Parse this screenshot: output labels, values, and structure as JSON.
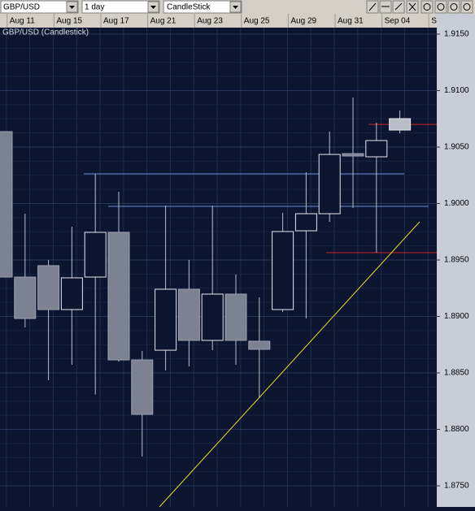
{
  "toolbar": {
    "symbol": "GBP/USD",
    "interval": "1 day",
    "style": "CandleStick"
  },
  "chart_data": {
    "type": "candlestick",
    "title": "GBP/USD (Candlestick)",
    "categories": [
      null,
      "Aug 11",
      null,
      "Aug 15",
      null,
      "Aug 17",
      null,
      "Aug 21",
      null,
      "Aug 23",
      null,
      "Aug 25",
      null,
      "Aug 29",
      null,
      "Aug 31",
      null,
      "Sep 04",
      null,
      "S"
    ],
    "open": [
      1.90637,
      1.89349,
      1.8945,
      1.89061,
      1.89349,
      1.89745,
      1.88615,
      1.88701,
      1.89241,
      1.88788,
      1.89198,
      1.88781,
      1.89061,
      1.89759,
      1.8991,
      1.90442,
      1.90414,
      1.90651,
      null,
      null
    ],
    "high": [
      1.90637,
      1.8991,
      1.895,
      1.89795,
      1.90263,
      1.90104,
      1.88694,
      1.89982,
      1.895,
      1.89982,
      1.89371,
      1.89169,
      1.89917,
      1.90277,
      1.90637,
      1.90939,
      1.90716,
      1.90824,
      null,
      null
    ],
    "low": [
      1.89349,
      1.88903,
      1.88435,
      1.88572,
      1.88309,
      1.886,
      1.87759,
      1.88522,
      1.88558,
      1.88701,
      1.88572,
      1.88277,
      1.89039,
      1.88982,
      1.89838,
      1.8996,
      1.89565,
      1.90622,
      null,
      null
    ],
    "close": [
      1.89349,
      1.88982,
      1.89061,
      1.89342,
      1.89745,
      1.88615,
      1.88133,
      1.89241,
      1.88788,
      1.89198,
      1.88788,
      1.88709,
      1.89752,
      1.8991,
      1.90435,
      1.90421,
      1.90558,
      1.90752,
      null,
      null
    ],
    "up_color": "#0b1530",
    "down_color": "#7c8291",
    "wick_color": "#b8bcc6",
    "ylim": [
      1.87313,
      1.91558
    ],
    "yticks": [
      {
        "value": 1.915,
        "label": "1.9150"
      },
      {
        "value": 1.91,
        "label": "1.9100"
      },
      {
        "value": 1.905,
        "label": "1.9050"
      },
      {
        "value": 1.9,
        "label": "1.9000"
      },
      {
        "value": 1.895,
        "label": "1.8950"
      },
      {
        "value": 1.89,
        "label": "1.8900"
      },
      {
        "value": 1.885,
        "label": "1.8850"
      },
      {
        "value": 1.88,
        "label": "1.8800"
      },
      {
        "value": 1.875,
        "label": "1.8750"
      }
    ],
    "grid": true,
    "horizontal_lines": [
      {
        "value": 1.90263,
        "color": "#6f8fd8"
      },
      {
        "value": 1.89975,
        "color": "#6f8fd8"
      },
      {
        "value": 1.90701,
        "color": "#d02020"
      },
      {
        "value": 1.89565,
        "color": "#d02020"
      }
    ]
  }
}
